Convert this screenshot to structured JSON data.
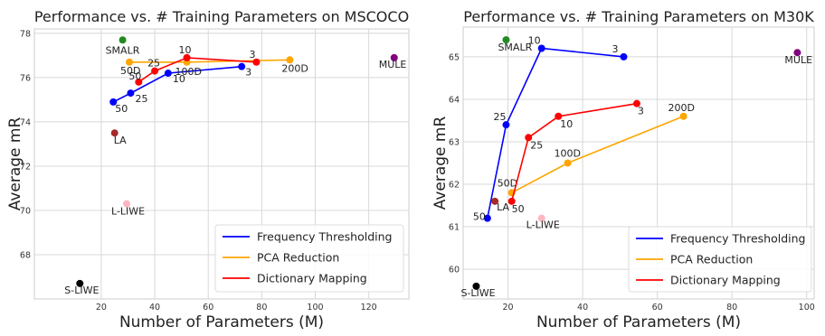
{
  "chart_data": [
    {
      "type": "scatter",
      "title": "Performance vs. # Training Parameters on MSCOCO",
      "xlabel": "Number of Parameters (M)",
      "ylabel": "Average mR",
      "xlim": [
        -5,
        135
      ],
      "ylim": [
        66,
        78.2
      ],
      "xticks": [
        "20",
        "40",
        "60",
        "80",
        "100",
        "120"
      ],
      "xtick_values": [
        20,
        40,
        60,
        80,
        100,
        120
      ],
      "yticks": [
        "68",
        "70",
        "72",
        "74",
        "76",
        "78"
      ],
      "ytick_values": [
        68,
        70,
        72,
        74,
        76,
        78
      ],
      "grid": true,
      "legend_position": "lower-right",
      "legend": [
        {
          "name": "Frequency Thresholding",
          "color": "#0000ff"
        },
        {
          "name": "PCA Reduction",
          "color": "#ffa500"
        },
        {
          "name": "Dictionary Mapping",
          "color": "#ff0000"
        }
      ],
      "series": [
        {
          "name": "Frequency Thresholding",
          "color": "#0000ff",
          "points": [
            {
              "x": 24.5,
              "y": 74.9,
              "label": "50",
              "dx": 2,
              "dy": 11
            },
            {
              "x": 31,
              "y": 75.3,
              "label": "25",
              "dx": 5,
              "dy": 10
            },
            {
              "x": 45,
              "y": 76.2,
              "label": "10",
              "dx": 5,
              "dy": 10
            },
            {
              "x": 72.5,
              "y": 76.5,
              "label": "3",
              "dx": 4,
              "dy": 10
            }
          ]
        },
        {
          "name": "PCA Reduction",
          "color": "#ffa500",
          "points": [
            {
              "x": 30.5,
              "y": 76.7,
              "label": "50D",
              "dx": -10,
              "dy": 13
            },
            {
              "x": 52,
              "y": 76.7,
              "label": "100D",
              "dx": -13,
              "dy": 14
            },
            {
              "x": 90.5,
              "y": 76.8,
              "label": "200D",
              "dx": -9,
              "dy": 13
            }
          ]
        },
        {
          "name": "Dictionary Mapping",
          "color": "#ff0000",
          "points": [
            {
              "x": 34,
              "y": 75.8,
              "label": "50",
              "dx": -11,
              "dy": -3
            },
            {
              "x": 40,
              "y": 76.3,
              "label": "25",
              "dx": -8,
              "dy": -5
            },
            {
              "x": 52,
              "y": 76.9,
              "label": "10",
              "dx": -9,
              "dy": -5
            },
            {
              "x": 78,
              "y": 76.7,
              "label": "3",
              "dx": -8,
              "dy": -5
            }
          ]
        }
      ],
      "baselines": [
        {
          "label": "SMALR",
          "x": 28,
          "y": 77.7,
          "color": "#228b22",
          "dx": -19,
          "dy": 15
        },
        {
          "label": "MULE",
          "x": 129.5,
          "y": 76.9,
          "color": "#800080",
          "dx": -17,
          "dy": 11
        },
        {
          "label": "LA",
          "x": 25,
          "y": 73.5,
          "color": "#a52a2a",
          "dx": -1,
          "dy": 12
        },
        {
          "label": "L-LIWE",
          "x": 29.5,
          "y": 70.3,
          "color": "#ffb6c1",
          "dx": -17,
          "dy": 12
        },
        {
          "label": "S-LIWE",
          "x": 12,
          "y": 66.7,
          "color": "#000000",
          "dx": -17,
          "dy": 11
        }
      ]
    },
    {
      "type": "scatter",
      "title": "Performance vs. # Training Parameters on M30K",
      "xlabel": "Number of Parameters (M)",
      "ylabel": "Average mR",
      "xlim": [
        8,
        102
      ],
      "ylim": [
        59.3,
        65.7
      ],
      "xticks": [
        "20",
        "40",
        "60",
        "80",
        "100"
      ],
      "xtick_values": [
        20,
        40,
        60,
        80,
        100
      ],
      "yticks": [
        "60",
        "61",
        "62",
        "63",
        "64",
        "65"
      ],
      "ytick_values": [
        60,
        61,
        62,
        63,
        64,
        65
      ],
      "grid": true,
      "legend_position": "lower-right",
      "legend": [
        {
          "name": "Frequency Thresholding",
          "color": "#0000ff"
        },
        {
          "name": "PCA Reduction",
          "color": "#ffa500"
        },
        {
          "name": "Dictionary Mapping",
          "color": "#ff0000"
        }
      ],
      "series": [
        {
          "name": "Frequency Thresholding",
          "color": "#0000ff",
          "points": [
            {
              "x": 14.5,
              "y": 61.2,
              "label": "50",
              "dx": -16,
              "dy": 2
            },
            {
              "x": 19.5,
              "y": 63.4,
              "label": "25",
              "dx": -14,
              "dy": -5
            },
            {
              "x": 29,
              "y": 65.2,
              "label": "10",
              "dx": -15,
              "dy": -5
            },
            {
              "x": 51,
              "y": 65.0,
              "label": "3",
              "dx": -13,
              "dy": -5
            }
          ]
        },
        {
          "name": "PCA Reduction",
          "color": "#ffa500",
          "points": [
            {
              "x": 21,
              "y": 61.8,
              "label": "50D",
              "dx": -16,
              "dy": -7
            },
            {
              "x": 36,
              "y": 62.5,
              "label": "100D",
              "dx": -15,
              "dy": -7
            },
            {
              "x": 67,
              "y": 63.6,
              "label": "200D",
              "dx": -17,
              "dy": -6
            }
          ]
        },
        {
          "name": "Dictionary Mapping",
          "color": "#ff0000",
          "points": [
            {
              "x": 21,
              "y": 61.6,
              "label": "50",
              "dx": 0,
              "dy": 12
            },
            {
              "x": 25.5,
              "y": 63.1,
              "label": "25",
              "dx": 2,
              "dy": 12
            },
            {
              "x": 33.5,
              "y": 63.6,
              "label": "10",
              "dx": 2,
              "dy": 12
            },
            {
              "x": 54.5,
              "y": 63.9,
              "label": "3",
              "dx": 1,
              "dy": 12
            }
          ]
        }
      ],
      "baselines": [
        {
          "label": "SMALR",
          "x": 19.5,
          "y": 65.4,
          "color": "#228b22",
          "dx": -9,
          "dy": 12
        },
        {
          "label": "MULE",
          "x": 97.5,
          "y": 65.1,
          "color": "#800080",
          "dx": -14,
          "dy": 12
        },
        {
          "label": "LA",
          "x": 16.5,
          "y": 61.6,
          "color": "#a52a2a",
          "dx": 2,
          "dy": 10
        },
        {
          "label": "L-LIWE",
          "x": 29,
          "y": 61.2,
          "color": "#ffb6c1",
          "dx": -17,
          "dy": 11
        },
        {
          "label": "S-LIWE",
          "x": 11.5,
          "y": 59.6,
          "color": "#000000",
          "dx": -17,
          "dy": 11
        }
      ]
    }
  ]
}
